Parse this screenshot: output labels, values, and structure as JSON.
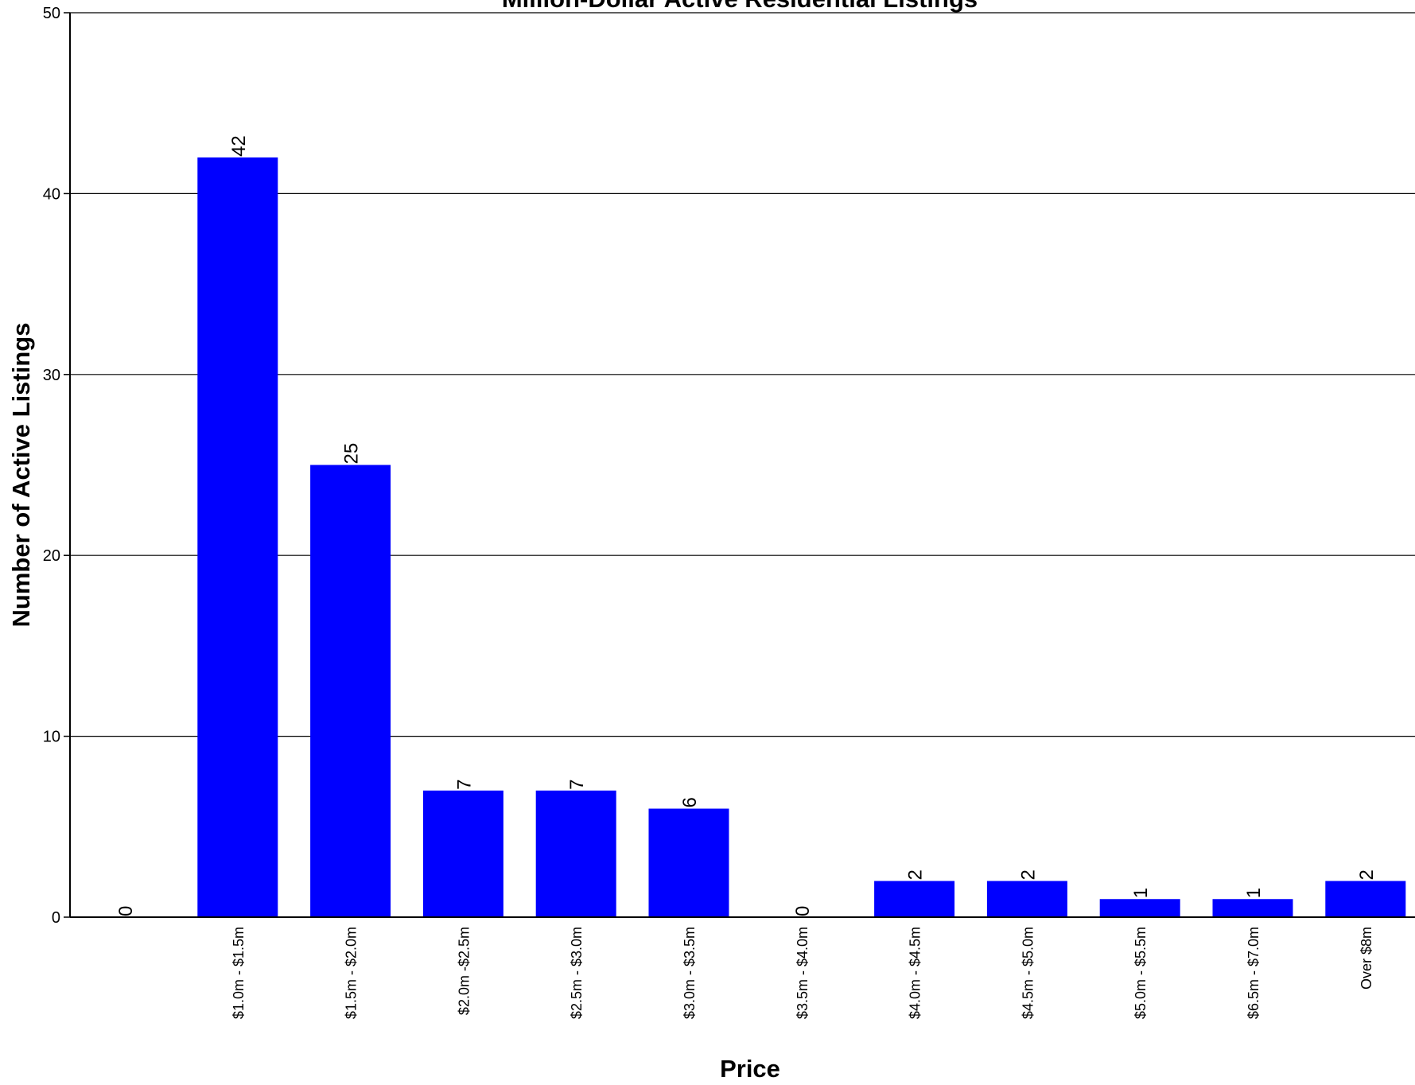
{
  "chart_data": {
    "type": "bar",
    "title": "Million-Dollar Active Residential Listings",
    "xlabel": "Price",
    "ylabel": "Number of Active Listings",
    "ylim": [
      0,
      50
    ],
    "yticks": [
      0,
      10,
      20,
      30,
      40,
      50
    ],
    "grid": true,
    "bar_color": "#0000ff",
    "categories": [
      "",
      "$1.0m - $1.5m",
      "$1.5m - $2.0m",
      "$2.0m -$2.5m",
      "$2.5m - $3.0m",
      "$3.0m - $3.5m",
      "$3.5m - $4.0m",
      "$4.0m - $4.5m",
      "$4.5m - $5.0m",
      "$5.0m - $5.5m",
      "$6.5m - $7.0m",
      "Over $8m"
    ],
    "values": [
      0,
      42,
      25,
      7,
      7,
      6,
      0,
      2,
      2,
      1,
      1,
      2
    ]
  }
}
